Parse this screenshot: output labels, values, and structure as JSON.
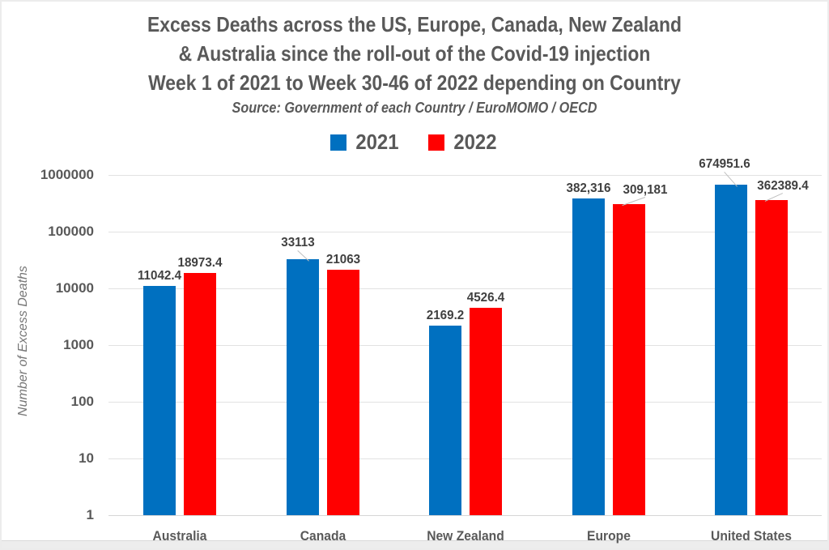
{
  "title": {
    "line1": "Excess Deaths across the US, Europe, Canada, New Zealand",
    "line2": "& Australia since the roll-out of the Covid-19 injection",
    "line3": "Week 1 of 2021 to Week 30-46 of 2022 depending on Country",
    "source": "Source: Government of each Country / EuroMOMO / OECD"
  },
  "colors": {
    "series_2021": "#0070C0",
    "series_2022": "#FF0000",
    "title_text": "#595959",
    "data_label_text": "#404040",
    "gridline": "#e2e2e2",
    "leader_line": "#bfbfbf"
  },
  "chart_data": {
    "type": "bar",
    "title": "Excess Deaths across the US, Europe, Canada, New Zealand & Australia since the roll-out of the Covid-19 injection, Week 1 of 2021 to Week 30-46 of 2022 depending on Country",
    "subtitle": "Source: Government of each Country / EuroMOMO / OECD",
    "categories": [
      "Australia",
      "Canada",
      "New Zealand",
      "Europe",
      "United States"
    ],
    "series": [
      {
        "name": "2021",
        "color": "#0070C0",
        "values": [
          11042.4,
          33113,
          2169.2,
          382316,
          674951.6
        ],
        "labels": [
          "11042.4",
          "33113",
          "2169.2",
          "382,316",
          "674951.6"
        ]
      },
      {
        "name": "2022",
        "color": "#FF0000",
        "values": [
          18973.4,
          21063,
          4526.4,
          309181,
          362389.4
        ],
        "labels": [
          "18973.4",
          "21063",
          "4526.4",
          "309,181",
          "362389.4"
        ]
      }
    ],
    "xlabel": "",
    "ylabel": "Number of Excess Deaths",
    "y_scale": "log10",
    "ylim": [
      1,
      1000000
    ],
    "y_ticks": [
      "1",
      "10",
      "100",
      "1000",
      "10000",
      "100000",
      "1000000"
    ],
    "grid": true,
    "legend_position": "top"
  }
}
